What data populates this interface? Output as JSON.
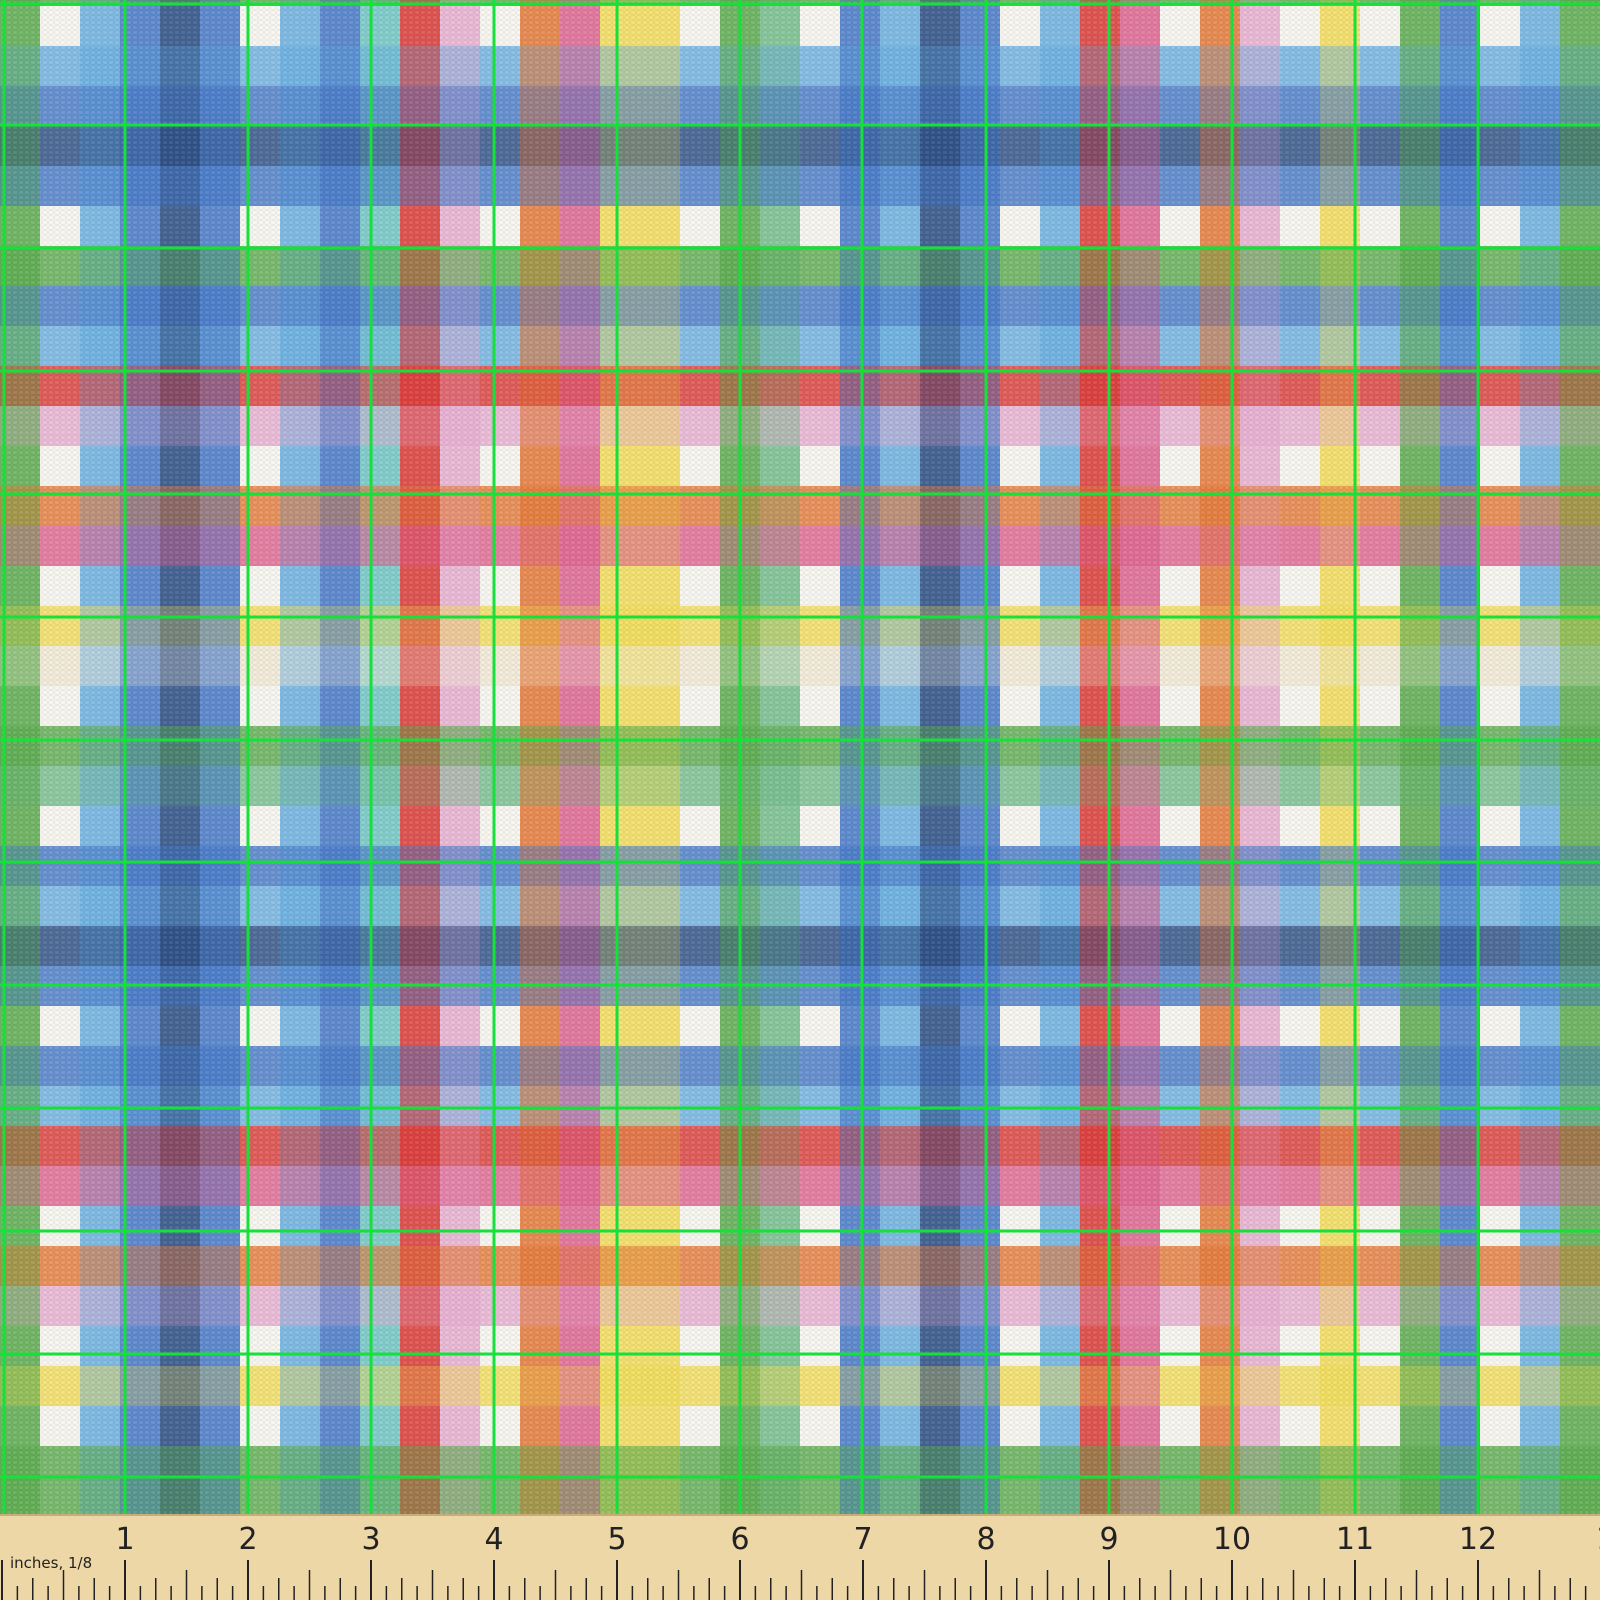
{
  "image": {
    "subject": "colorful-plaid-fabric-swatch",
    "palette": {
      "white": "#f8f6f0",
      "navy": "#2c4f86",
      "royal_blue": "#4a7cc9",
      "sky_blue": "#6fb2e2",
      "teal": "#73c7c7",
      "green": "#5fad52",
      "mint": "#78bf8f",
      "red": "#db3d3b",
      "pink": "#e06893",
      "light_pink": "#e8b1d2",
      "orange": "#e57c3d",
      "peach": "#e89a6a",
      "tan": "#e6b46d",
      "yellow": "#f2de5e",
      "cream": "#f2ead6",
      "grid_green": "#16e03a",
      "ruler_wood": "#eed7a6",
      "ruler_ink": "#222222"
    },
    "measurement_grid": {
      "color": "#16e03a",
      "unit": "inch"
    }
  },
  "ruler": {
    "unit_label": "inches, 1/8",
    "numbers": [
      "1",
      "2",
      "3",
      "4",
      "5",
      "6",
      "7",
      "8",
      "9",
      "10",
      "11",
      "12",
      "1"
    ]
  }
}
